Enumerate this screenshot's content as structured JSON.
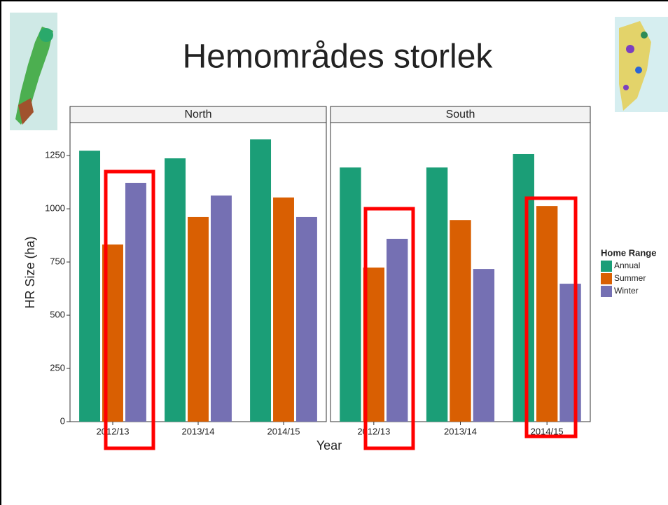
{
  "chart_data": {
    "type": "bar",
    "title": "Hemområdes storlek",
    "x_label": "Year",
    "y_label": "HR Size (ha)",
    "legend_title": "Home Range",
    "legend": "right",
    "categories": [
      "2012/13",
      "2013/14",
      "2014/15"
    ],
    "series": [
      {
        "name": "Annual",
        "color": "#1b9e77"
      },
      {
        "name": "Summer",
        "color": "#d95f02"
      },
      {
        "name": "Winter",
        "color": "#7570b3"
      }
    ],
    "panels": [
      {
        "title": "North",
        "values": [
          [
            1273,
            1237,
            1326
          ],
          [
            832,
            961,
            1053
          ],
          [
            1122,
            1062,
            961
          ]
        ]
      },
      {
        "title": "South",
        "values": [
          [
            1194,
            1194,
            1257
          ],
          [
            724,
            947,
            1013
          ],
          [
            859,
            717,
            648
          ]
        ]
      }
    ],
    "ylim": [
      0,
      1405
    ],
    "yticks": [
      0,
      250,
      500,
      750,
      1000,
      1250
    ]
  }
}
